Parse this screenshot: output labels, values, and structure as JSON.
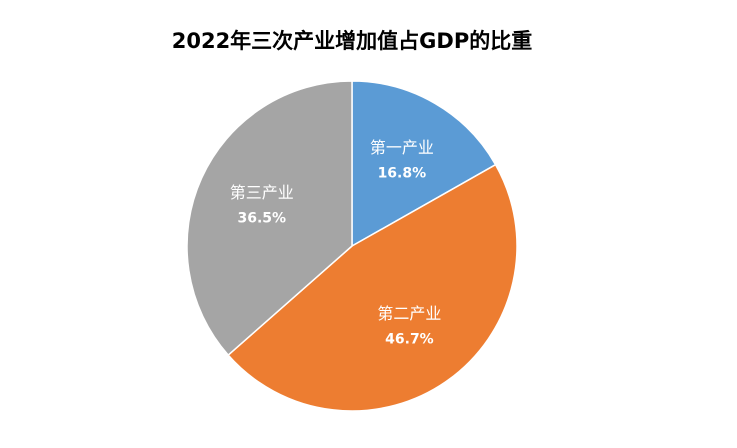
{
  "chart_data": {
    "type": "pie",
    "title": "2022年三次产业增加值占GDP的比重",
    "categories": [
      "第一产业",
      "第二产业",
      "第三产业"
    ],
    "values": [
      16.8,
      46.7,
      36.5
    ],
    "value_labels": [
      "16.8%",
      "46.7%",
      "36.5%"
    ],
    "colors": [
      "#5b9bd5",
      "#ed7d31",
      "#a5a5a5"
    ]
  }
}
